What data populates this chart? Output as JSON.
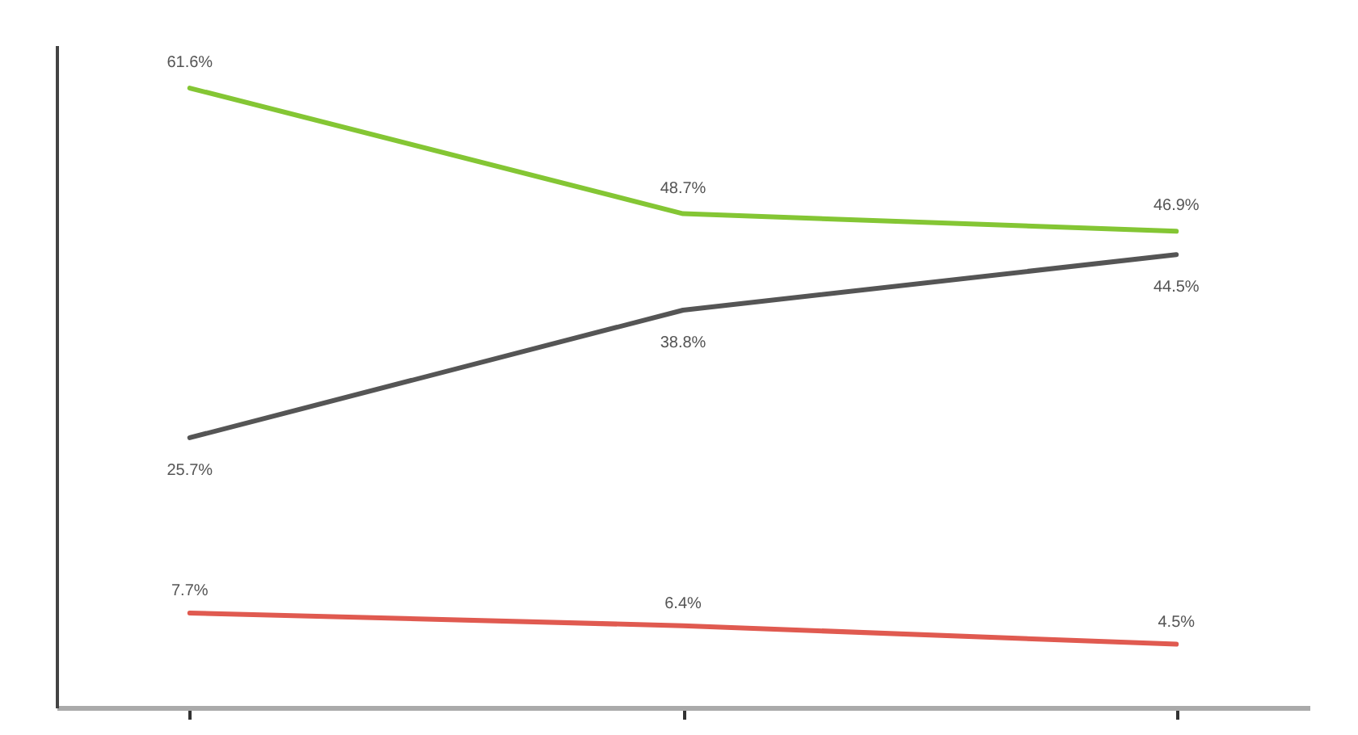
{
  "chart_data": {
    "type": "line",
    "categories": [
      null,
      null,
      null
    ],
    "series": [
      {
        "color": "#84c634",
        "values": [
          61.6,
          48.7,
          46.9
        ],
        "value_labels": [
          "61.6%",
          "48.7%",
          "46.9%"
        ]
      },
      {
        "color": "#555555",
        "values": [
          25.7,
          38.8,
          44.5
        ],
        "value_labels": [
          "25.7%",
          "38.8%",
          "44.5%"
        ]
      },
      {
        "color": "#e05a50",
        "values": [
          7.7,
          6.4,
          4.5
        ],
        "value_labels": [
          "7.7%",
          "6.4%",
          "4.5%"
        ]
      }
    ],
    "ylim": [
      -2,
      66
    ]
  }
}
